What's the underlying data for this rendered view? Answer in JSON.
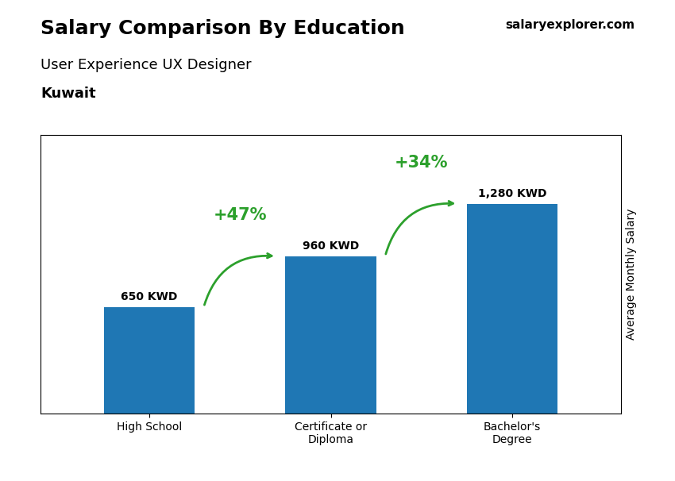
{
  "chart_data": {
    "type": "bar",
    "title": "Salary Comparison By Education",
    "subtitle": [
      "User Experience UX Designer",
      "Kuwait"
    ],
    "watermark": "salaryexplorer.com",
    "ylabel": "Average Monthly Salary",
    "categories": [
      "High School",
      "Certificate or\nDiploma",
      "Bachelor's\nDegree"
    ],
    "values": [
      650,
      960,
      1280
    ],
    "value_labels": [
      "650 KWD",
      "960 KWD",
      "1,280 KWD"
    ],
    "data_labels": true,
    "annotations": [
      "+47%",
      "+34%"
    ],
    "ylim": [
      0,
      1700
    ],
    "tick_labels": "x",
    "grid": false
  }
}
